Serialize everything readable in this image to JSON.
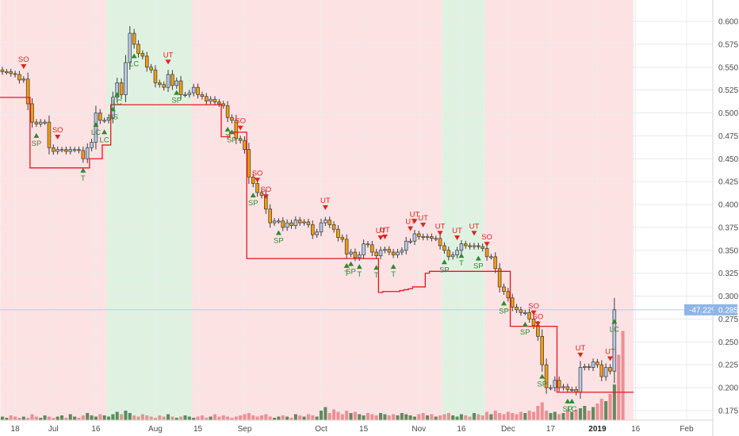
{
  "chart_data": {
    "type": "candlestick",
    "title": "",
    "xlabel": "",
    "ylabel": "",
    "ylim": [
      0.165,
      0.61
    ],
    "y_ticks": [
      "0.600",
      "0.575",
      "0.550",
      "0.525",
      "0.500",
      "0.475",
      "0.450",
      "0.425",
      "0.400",
      "0.375",
      "0.350",
      "0.325",
      "0.300",
      "0.275",
      "0.250",
      "0.225",
      "0.200",
      "0.175"
    ],
    "x_ticks": [
      {
        "label": "18",
        "bar": 3,
        "bold": false
      },
      {
        "label": "Jul",
        "bar": 12,
        "bold": false
      },
      {
        "label": "16",
        "bar": 22,
        "bold": false
      },
      {
        "label": "Aug",
        "bar": 36,
        "bold": false
      },
      {
        "label": "15",
        "bar": 46,
        "bold": false
      },
      {
        "label": "Sep",
        "bar": 57,
        "bold": false
      },
      {
        "label": "Oct",
        "bar": 75,
        "bold": false
      },
      {
        "label": "15",
        "bar": 85,
        "bold": false
      },
      {
        "label": "Nov",
        "bar": 98,
        "bold": false
      },
      {
        "label": "16",
        "bar": 108,
        "bold": false
      },
      {
        "label": "Dec",
        "bar": 119,
        "bold": false
      },
      {
        "label": "17",
        "bar": 129,
        "bold": false
      },
      {
        "label": "2019",
        "bar": 140,
        "bold": true
      },
      {
        "label": "16",
        "bar": 149,
        "bold": false
      },
      {
        "label": "Feb",
        "bar": 161,
        "bold": false
      }
    ],
    "closes": [
      0.545,
      0.545,
      0.543,
      0.542,
      0.536,
      0.537,
      0.51,
      0.49,
      0.488,
      0.49,
      0.49,
      0.462,
      0.458,
      0.46,
      0.46,
      0.458,
      0.46,
      0.46,
      0.459,
      0.45,
      0.462,
      0.468,
      0.5,
      0.492,
      0.492,
      0.495,
      0.517,
      0.533,
      0.52,
      0.555,
      0.587,
      0.575,
      0.565,
      0.562,
      0.55,
      0.547,
      0.533,
      0.531,
      0.528,
      0.542,
      0.53,
      0.535,
      0.52,
      0.52,
      0.522,
      0.528,
      0.52,
      0.518,
      0.513,
      0.515,
      0.512,
      0.51,
      0.508,
      0.495,
      0.492,
      0.472,
      0.47,
      0.46,
      0.43,
      0.423,
      0.413,
      0.41,
      0.395,
      0.38,
      0.382,
      0.382,
      0.375,
      0.38,
      0.377,
      0.383,
      0.38,
      0.381,
      0.378,
      0.367,
      0.37,
      0.38,
      0.383,
      0.378,
      0.373,
      0.364,
      0.362,
      0.346,
      0.348,
      0.342,
      0.345,
      0.357,
      0.356,
      0.348,
      0.344,
      0.35,
      0.351,
      0.348,
      0.345,
      0.348,
      0.35,
      0.36,
      0.36,
      0.368,
      0.365,
      0.364,
      0.365,
      0.363,
      0.363,
      0.355,
      0.35,
      0.343,
      0.345,
      0.35,
      0.357,
      0.355,
      0.354,
      0.355,
      0.354,
      0.352,
      0.343,
      0.343,
      0.33,
      0.31,
      0.305,
      0.298,
      0.288,
      0.285,
      0.282,
      0.282,
      0.275,
      0.268,
      0.256,
      0.225,
      0.2,
      0.2,
      0.208,
      0.2,
      0.201,
      0.198,
      0.198,
      0.195,
      0.222,
      0.223,
      0.222,
      0.228,
      0.225,
      0.212,
      0.222,
      0.218,
      0.285
    ],
    "series": [
      {
        "name": "",
        "type": "step-line",
        "color": "#e8161b",
        "values": [
          0.517,
          0.517,
          0.517,
          0.517,
          0.517,
          0.517,
          0.517,
          0.44,
          0.44,
          0.44,
          0.44,
          0.44,
          0.44,
          0.44,
          0.44,
          0.44,
          0.44,
          0.44,
          0.44,
          0.44,
          0.44,
          0.45,
          0.45,
          0.45,
          0.465,
          0.465,
          0.509,
          0.509,
          0.509,
          0.509,
          0.509,
          0.509,
          0.509,
          0.509,
          0.509,
          0.509,
          0.509,
          0.509,
          0.509,
          0.509,
          0.509,
          0.509,
          0.509,
          0.509,
          0.509,
          0.509,
          0.509,
          0.509,
          0.509,
          0.509,
          0.509,
          0.509,
          0.474,
          0.474,
          0.479,
          0.479,
          0.479,
          0.479,
          0.341,
          0.341,
          0.341,
          0.341,
          0.341,
          0.341,
          0.341,
          0.341,
          0.341,
          0.341,
          0.341,
          0.341,
          0.341,
          0.341,
          0.341,
          0.341,
          0.341,
          0.341,
          0.341,
          0.341,
          0.341,
          0.341,
          0.341,
          0.341,
          0.341,
          0.341,
          0.341,
          0.341,
          0.341,
          0.341,
          0.341,
          0.304,
          0.305,
          0.305,
          0.305,
          0.305,
          0.306,
          0.307,
          0.308,
          0.31,
          0.31,
          0.31,
          0.325,
          0.327,
          0.327,
          0.327,
          0.327,
          0.327,
          0.327,
          0.327,
          0.327,
          0.327,
          0.327,
          0.327,
          0.327,
          0.327,
          0.327,
          0.327,
          0.327,
          0.327,
          0.327,
          0.327,
          0.267,
          0.267,
          0.267,
          0.267,
          0.267,
          0.267,
          0.267,
          0.267,
          0.267,
          0.267,
          0.267,
          0.195,
          0.195,
          0.195,
          0.195,
          0.195,
          0.195,
          0.195,
          0.195,
          0.195,
          0.195,
          0.195,
          0.195,
          0.195,
          0.195,
          0.195,
          0.195,
          0.195,
          0.195
        ]
      },
      {
        "name": "",
        "type": "volume",
        "values": [
          0.03,
          0.02,
          0.04,
          0.03,
          0.02,
          0.03,
          0.02,
          0.05,
          0.03,
          0.02,
          0.04,
          0.03,
          0.02,
          0.03,
          0.04,
          0.02,
          0.05,
          0.03,
          0.02,
          0.04,
          0.06,
          0.04,
          0.03,
          0.05,
          0.04,
          0.03,
          0.05,
          0.07,
          0.05,
          0.08,
          0.06,
          0.04,
          0.03,
          0.05,
          0.04,
          0.03,
          0.02,
          0.04,
          0.03,
          0.05,
          0.03,
          0.02,
          0.03,
          0.04,
          0.03,
          0.02,
          0.03,
          0.04,
          0.02,
          0.03,
          0.05,
          0.03,
          0.04,
          0.03,
          0.02,
          0.03,
          0.04,
          0.05,
          0.06,
          0.04,
          0.03,
          0.04,
          0.05,
          0.03,
          0.02,
          0.03,
          0.04,
          0.03,
          0.02,
          0.05,
          0.04,
          0.03,
          0.05,
          0.04,
          0.03,
          0.08,
          0.11,
          0.06,
          0.09,
          0.07,
          0.05,
          0.08,
          0.06,
          0.07,
          0.05,
          0.04,
          0.06,
          0.05,
          0.04,
          0.06,
          0.05,
          0.04,
          0.05,
          0.04,
          0.06,
          0.05,
          0.04,
          0.03,
          0.05,
          0.06,
          0.04,
          0.05,
          0.03,
          0.04,
          0.05,
          0.06,
          0.04,
          0.03,
          0.05,
          0.04,
          0.03,
          0.06,
          0.05,
          0.04,
          0.07,
          0.05,
          0.08,
          0.06,
          0.05,
          0.07,
          0.06,
          0.05,
          0.07,
          0.06,
          0.08,
          0.07,
          0.12,
          0.15,
          0.08,
          0.06,
          0.07,
          0.05,
          0.06,
          0.08,
          0.07,
          0.09,
          0.1,
          0.12,
          0.08,
          0.11,
          0.14,
          0.18,
          0.16,
          0.22,
          0.3,
          0.55,
          0.75
        ]
      }
    ],
    "regions": [
      {
        "start_bar": 0,
        "end_bar": 24,
        "color": "#fde2e4"
      },
      {
        "start_bar": 25,
        "end_bar": 44,
        "color": "#dff2e1"
      },
      {
        "start_bar": 45,
        "end_bar": 103,
        "color": "#fde2e4"
      },
      {
        "start_bar": 104,
        "end_bar": 113,
        "color": "#dff2e1"
      },
      {
        "start_bar": 114,
        "end_bar": 148,
        "color": "#fde2e4"
      }
    ],
    "annotations": [
      {
        "bar": 5,
        "text": "SO",
        "dir": "down",
        "color": "#e0241b"
      },
      {
        "bar": 8,
        "text": "SP",
        "dir": "up",
        "color": "#2e8b2e"
      },
      {
        "bar": 13,
        "text": "SO",
        "dir": "down",
        "color": "#e0241b"
      },
      {
        "bar": 19,
        "text": "T",
        "dir": "up",
        "color": "#2e8b2e"
      },
      {
        "bar": 22,
        "text": "LC",
        "dir": "up",
        "color": "#2e8b2e"
      },
      {
        "bar": 24,
        "text": "LC",
        "dir": "up",
        "color": "#2e8b2e"
      },
      {
        "bar": 26,
        "text": "NS",
        "dir": "up",
        "color": "#2e8b2e"
      },
      {
        "bar": 27,
        "text": "LC",
        "dir": "up",
        "color": "#2e8b2e"
      },
      {
        "bar": 31,
        "text": "LC",
        "dir": "up",
        "color": "#2e8b2e"
      },
      {
        "bar": 39,
        "text": "UT",
        "dir": "down",
        "color": "#e0241b"
      },
      {
        "bar": 41,
        "text": "SP",
        "dir": "up",
        "color": "#2e8b2e"
      },
      {
        "bar": 53,
        "text": "T",
        "dir": "up",
        "color": "#2e8b2e"
      },
      {
        "bar": 54,
        "text": "SP",
        "dir": "up",
        "color": "#2e8b2e"
      },
      {
        "bar": 56,
        "text": "SO",
        "dir": "down",
        "color": "#e0241b"
      },
      {
        "bar": 59,
        "text": "SP",
        "dir": "up",
        "color": "#2e8b2e"
      },
      {
        "bar": 60,
        "text": "SO",
        "dir": "down",
        "color": "#e0241b"
      },
      {
        "bar": 62,
        "text": "SO",
        "dir": "down",
        "color": "#e0241b"
      },
      {
        "bar": 65,
        "text": "SP",
        "dir": "up",
        "color": "#2e8b2e"
      },
      {
        "bar": 76,
        "text": "UT",
        "dir": "down",
        "color": "#e0241b"
      },
      {
        "bar": 81,
        "text": "T",
        "dir": "up",
        "color": "#2e8b2e"
      },
      {
        "bar": 82,
        "text": "SP",
        "dir": "up",
        "color": "#2e8b2e"
      },
      {
        "bar": 84,
        "text": "T",
        "dir": "up",
        "color": "#2e8b2e"
      },
      {
        "bar": 88,
        "text": "T",
        "dir": "up",
        "color": "#2e8b2e"
      },
      {
        "bar": 89,
        "text": "UT",
        "dir": "down",
        "color": "#e0241b"
      },
      {
        "bar": 90,
        "text": "UT",
        "dir": "down",
        "color": "#e0241b"
      },
      {
        "bar": 92,
        "text": "T",
        "dir": "up",
        "color": "#2e8b2e"
      },
      {
        "bar": 96,
        "text": "UT",
        "dir": "down",
        "color": "#e0241b"
      },
      {
        "bar": 97,
        "text": "UT",
        "dir": "down",
        "color": "#e0241b"
      },
      {
        "bar": 99,
        "text": "UT",
        "dir": "down",
        "color": "#e0241b"
      },
      {
        "bar": 103,
        "text": "UT",
        "dir": "down",
        "color": "#e0241b"
      },
      {
        "bar": 104,
        "text": "SP",
        "dir": "up",
        "color": "#2e8b2e"
      },
      {
        "bar": 107,
        "text": "UT",
        "dir": "down",
        "color": "#e0241b"
      },
      {
        "bar": 108,
        "text": "T",
        "dir": "up",
        "color": "#2e8b2e"
      },
      {
        "bar": 111,
        "text": "UT",
        "dir": "down",
        "color": "#e0241b"
      },
      {
        "bar": 112,
        "text": "SP",
        "dir": "up",
        "color": "#2e8b2e"
      },
      {
        "bar": 114,
        "text": "SO",
        "dir": "down",
        "color": "#e0241b"
      },
      {
        "bar": 118,
        "text": "SP",
        "dir": "up",
        "color": "#2e8b2e"
      },
      {
        "bar": 123,
        "text": "SP",
        "dir": "up",
        "color": "#2e8b2e"
      },
      {
        "bar": 125,
        "text": "SO",
        "dir": "down",
        "color": "#e0241b"
      },
      {
        "bar": 126,
        "text": "SO",
        "dir": "down",
        "color": "#e0241b"
      },
      {
        "bar": 127,
        "text": "SP",
        "dir": "up",
        "color": "#2e8b2e"
      },
      {
        "bar": 133,
        "text": "SP",
        "dir": "up",
        "color": "#2e8b2e"
      },
      {
        "bar": 134,
        "text": "LC",
        "dir": "up",
        "color": "#2e8b2e"
      },
      {
        "bar": 136,
        "text": "UT",
        "dir": "down",
        "color": "#e0241b"
      },
      {
        "bar": 143,
        "text": "UT",
        "dir": "down",
        "color": "#e0241b"
      },
      {
        "bar": 144,
        "text": "LC",
        "dir": "up",
        "color": "#2e8b2e"
      }
    ],
    "last_price": {
      "change": "-47.22%",
      "value": "0.285"
    },
    "colors": {
      "up_candle": "#b7c9e6",
      "down_candle": "#f39c12",
      "candle_outline": "#3a3a3a",
      "stop_line": "#e8161b",
      "price_tag": "#8fb5e6",
      "volume_up": "#2f6b2f",
      "volume_down": "#e05a63"
    }
  }
}
